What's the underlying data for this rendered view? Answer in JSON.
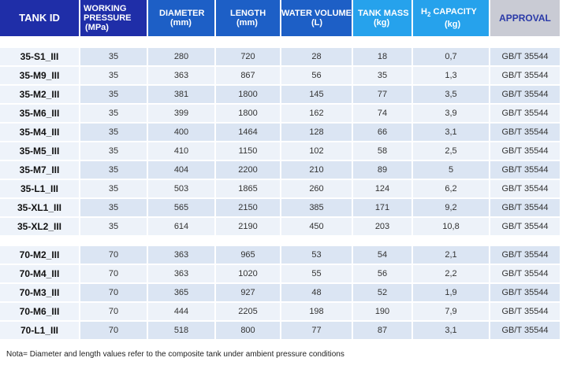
{
  "table": {
    "headers": [
      {
        "line1": "TANK ID",
        "line2": "",
        "line3": ""
      },
      {
        "line1": "WORKING",
        "line2": "PRESSURE",
        "line3": "(MPa)"
      },
      {
        "line1": "DIAMETER",
        "line2": "(mm)",
        "line3": ""
      },
      {
        "line1": "LENGTH",
        "line2": "(mm)",
        "line3": ""
      },
      {
        "line1": "WATER VOLUME",
        "line2": "(L)",
        "line3": ""
      },
      {
        "line1": "TANK MASS",
        "line2": "(kg)",
        "line3": ""
      },
      {
        "line1": "H",
        "sub": "2",
        "line1b": " CAPACITY",
        "line2": "(kg)",
        "line3": ""
      },
      {
        "line1": "APPROVAL",
        "line2": "",
        "line3": ""
      }
    ],
    "group1": [
      [
        "35-S1_III",
        "35",
        "280",
        "720",
        "28",
        "18",
        "0,7",
        "GB/T 35544"
      ],
      [
        "35-M9_III",
        "35",
        "363",
        "867",
        "56",
        "35",
        "1,3",
        "GB/T 35544"
      ],
      [
        "35-M2_III",
        "35",
        "381",
        "1800",
        "145",
        "77",
        "3,5",
        "GB/T 35544"
      ],
      [
        "35-M6_III",
        "35",
        "399",
        "1800",
        "162",
        "74",
        "3,9",
        "GB/T 35544"
      ],
      [
        "35-M4_III",
        "35",
        "400",
        "1464",
        "128",
        "66",
        "3,1",
        "GB/T 35544"
      ],
      [
        "35-M5_III",
        "35",
        "410",
        "1150",
        "102",
        "58",
        "2,5",
        "GB/T 35544"
      ],
      [
        "35-M7_III",
        "35",
        "404",
        "2200",
        "210",
        "89",
        "5",
        "GB/T 35544"
      ],
      [
        "35-L1_III",
        "35",
        "503",
        "1865",
        "260",
        "124",
        "6,2",
        "GB/T 35544"
      ],
      [
        "35-XL1_III",
        "35",
        "565",
        "2150",
        "385",
        "171",
        "9,2",
        "GB/T 35544"
      ],
      [
        "35-XL2_III",
        "35",
        "614",
        "2190",
        "450",
        "203",
        "10,8",
        "GB/T 35544"
      ]
    ],
    "group2": [
      [
        "70-M2_III",
        "70",
        "363",
        "965",
        "53",
        "54",
        "2,1",
        "GB/T 35544"
      ],
      [
        "70-M4_III",
        "70",
        "363",
        "1020",
        "55",
        "56",
        "2,2",
        "GB/T 35544"
      ],
      [
        "70-M3_III",
        "70",
        "365",
        "927",
        "48",
        "52",
        "1,9",
        "GB/T 35544"
      ],
      [
        "70-M6_III",
        "70",
        "444",
        "2205",
        "198",
        "190",
        "7,9",
        "GB/T 35544"
      ],
      [
        "70-L1_III",
        "70",
        "518",
        "800",
        "77",
        "87",
        "3,1",
        "GB/T 35544"
      ]
    ]
  },
  "note": "Nota= Diameter and length values  refer to the composite tank under ambient pressure conditions",
  "colors": {
    "header_dark": "#1f2ea8",
    "header_mid": "#1d5fc6",
    "header_light": "#26a2ec",
    "header_grey": "#c9cbd4",
    "row_band_a": "#dbe5f3",
    "row_band_b": "#edf2f9"
  }
}
